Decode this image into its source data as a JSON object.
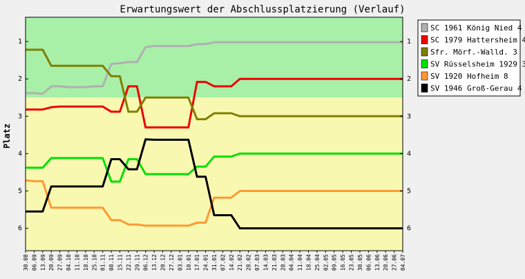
{
  "chart_data": {
    "type": "line",
    "title": "Erwartungswert der Abschlussplatzierung (Verlauf)",
    "ylabel": "Platz",
    "xlabel": "",
    "ylim": [
      0.35,
      6.6
    ],
    "y_ticks": [
      "1",
      "2",
      "3",
      "4",
      "5",
      "6"
    ],
    "grid": false,
    "legend_position": "right",
    "zones": [
      {
        "from": 0.35,
        "to": 2.5,
        "color": "#a8f0a8"
      },
      {
        "from": 2.5,
        "to": 6.6,
        "color": "#f8f8b0"
      }
    ],
    "x": [
      "30.08",
      "06.09",
      "13.09",
      "20.09",
      "27.09",
      "04.10",
      "11.10",
      "18.10",
      "25.10",
      "01.11",
      "08.11",
      "15.11",
      "22.11",
      "29.11",
      "06.12",
      "13.12",
      "20.12",
      "27.12",
      "03.01",
      "10.01",
      "17.01",
      "24.01",
      "31.01",
      "07.02",
      "14.02",
      "21.02",
      "28.02",
      "07.03",
      "14.03",
      "21.03",
      "28.03",
      "04.04",
      "11.04",
      "18.04",
      "25.04",
      "02.05",
      "09.05",
      "16.05",
      "23.05",
      "30.05",
      "06.06",
      "13.06",
      "20.06",
      "27.06",
      "04.07"
    ],
    "series": [
      {
        "name": "SC 1961 König Nied 4",
        "color": "#b0b0b0",
        "values": [
          2.38,
          2.38,
          2.4,
          2.2,
          2.2,
          2.22,
          2.22,
          2.22,
          2.2,
          2.2,
          1.6,
          1.58,
          1.55,
          1.55,
          1.15,
          1.12,
          1.12,
          1.12,
          1.12,
          1.12,
          1.07,
          1.07,
          1.02,
          1.02,
          1.02,
          1.02,
          1.02,
          1.02,
          1.02,
          1.02,
          1.02,
          1.02,
          1.02,
          1.02,
          1.02,
          1.02,
          1.02,
          1.02,
          1.02,
          1.02,
          1.02,
          1.02,
          1.02,
          1.02,
          1.02
        ]
      },
      {
        "name": "SC 1979 Hattersheim 4",
        "color": "#ee0000",
        "values": [
          2.82,
          2.82,
          2.82,
          2.76,
          2.74,
          2.74,
          2.74,
          2.74,
          2.74,
          2.74,
          2.88,
          2.88,
          2.2,
          2.2,
          3.3,
          3.3,
          3.3,
          3.3,
          3.3,
          3.3,
          2.08,
          2.08,
          2.2,
          2.2,
          2.2,
          2.0,
          2.0,
          2.0,
          2.0,
          2.0,
          2.0,
          2.0,
          2.0,
          2.0,
          2.0,
          2.0,
          2.0,
          2.0,
          2.0,
          2.0,
          2.0,
          2.0,
          2.0,
          2.0,
          2.0
        ]
      },
      {
        "name": "Sfr. Mörf.-Walld. 3",
        "color": "#7f7f00",
        "values": [
          1.22,
          1.22,
          1.22,
          1.65,
          1.65,
          1.65,
          1.65,
          1.65,
          1.65,
          1.65,
          1.93,
          1.93,
          2.88,
          2.88,
          2.5,
          2.5,
          2.5,
          2.5,
          2.5,
          2.5,
          3.08,
          3.08,
          2.92,
          2.92,
          2.92,
          3.0,
          3.0,
          3.0,
          3.0,
          3.0,
          3.0,
          3.0,
          3.0,
          3.0,
          3.0,
          3.0,
          3.0,
          3.0,
          3.0,
          3.0,
          3.0,
          3.0,
          3.0,
          3.0,
          3.0
        ]
      },
      {
        "name": "SV Rüsselsheim 1929 3",
        "color": "#00e000",
        "values": [
          4.38,
          4.38,
          4.38,
          4.12,
          4.12,
          4.12,
          4.12,
          4.12,
          4.12,
          4.12,
          4.75,
          4.75,
          4.15,
          4.15,
          4.55,
          4.55,
          4.55,
          4.55,
          4.55,
          4.55,
          4.35,
          4.35,
          4.08,
          4.08,
          4.08,
          4.0,
          4.0,
          4.0,
          4.0,
          4.0,
          4.0,
          4.0,
          4.0,
          4.0,
          4.0,
          4.0,
          4.0,
          4.0,
          4.0,
          4.0,
          4.0,
          4.0,
          4.0,
          4.0,
          4.0
        ]
      },
      {
        "name": "SV 1920 Hofheim 8",
        "color": "#ff9933",
        "values": [
          4.72,
          4.74,
          4.74,
          5.45,
          5.45,
          5.45,
          5.45,
          5.45,
          5.45,
          5.45,
          5.78,
          5.78,
          5.9,
          5.9,
          5.93,
          5.93,
          5.93,
          5.93,
          5.93,
          5.93,
          5.85,
          5.85,
          5.18,
          5.18,
          5.18,
          5.0,
          5.0,
          5.0,
          5.0,
          5.0,
          5.0,
          5.0,
          5.0,
          5.0,
          5.0,
          5.0,
          5.0,
          5.0,
          5.0,
          5.0,
          5.0,
          5.0,
          5.0,
          5.0,
          5.0
        ]
      },
      {
        "name": "SV 1946 Groß-Gerau 4",
        "color": "#000000",
        "values": [
          5.55,
          5.55,
          5.55,
          4.88,
          4.88,
          4.88,
          4.88,
          4.88,
          4.88,
          4.88,
          4.15,
          4.15,
          4.42,
          4.42,
          3.62,
          3.63,
          3.63,
          3.63,
          3.63,
          3.63,
          4.62,
          4.62,
          5.65,
          5.65,
          5.65,
          6.0,
          6.0,
          6.0,
          6.0,
          6.0,
          6.0,
          6.0,
          6.0,
          6.0,
          6.0,
          6.0,
          6.0,
          6.0,
          6.0,
          6.0,
          6.0,
          6.0,
          6.0,
          6.0,
          6.0
        ]
      }
    ]
  }
}
